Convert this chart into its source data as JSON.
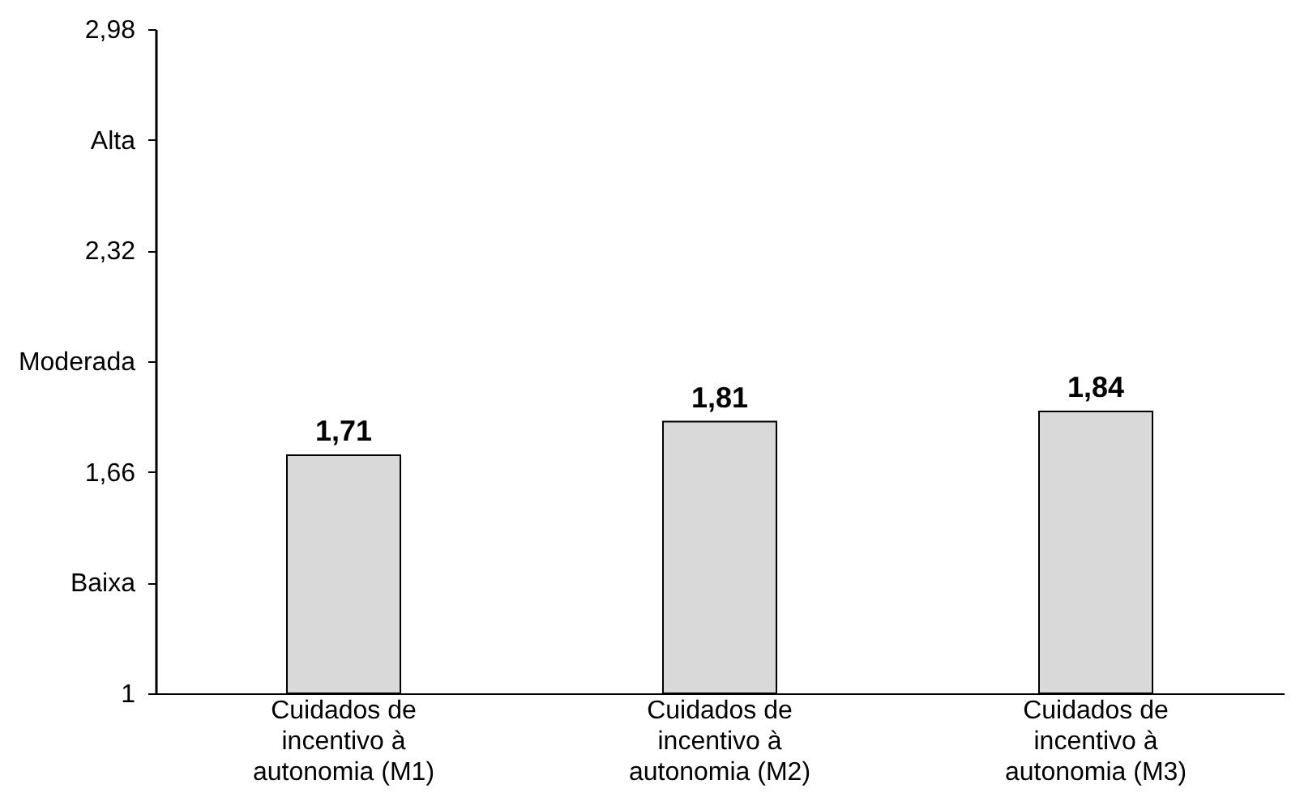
{
  "chart_data": {
    "type": "bar",
    "categories": [
      "Cuidados de incentivo à autonomia (M1)",
      "Cuidados de incentivo à autonomia (M2)",
      "Cuidados de incentivo à autonomia (M3)"
    ],
    "values": [
      1.71,
      1.81,
      1.84
    ],
    "value_labels": [
      "1,71",
      "1,81",
      "1,84"
    ],
    "color": "#d9d9d9",
    "ylim": [
      1,
      2.98
    ],
    "yticks": [
      1,
      {
        "value": 1.33,
        "label": "Baixa"
      },
      {
        "value": 1.66,
        "label": "1,66"
      },
      {
        "value": 1.99,
        "label": "Moderada"
      },
      {
        "value": 2.32,
        "label": "2,32"
      },
      {
        "value": 2.65,
        "label": "Alta"
      },
      {
        "value": 2.98,
        "label": "2,98"
      }
    ],
    "grid": false
  }
}
